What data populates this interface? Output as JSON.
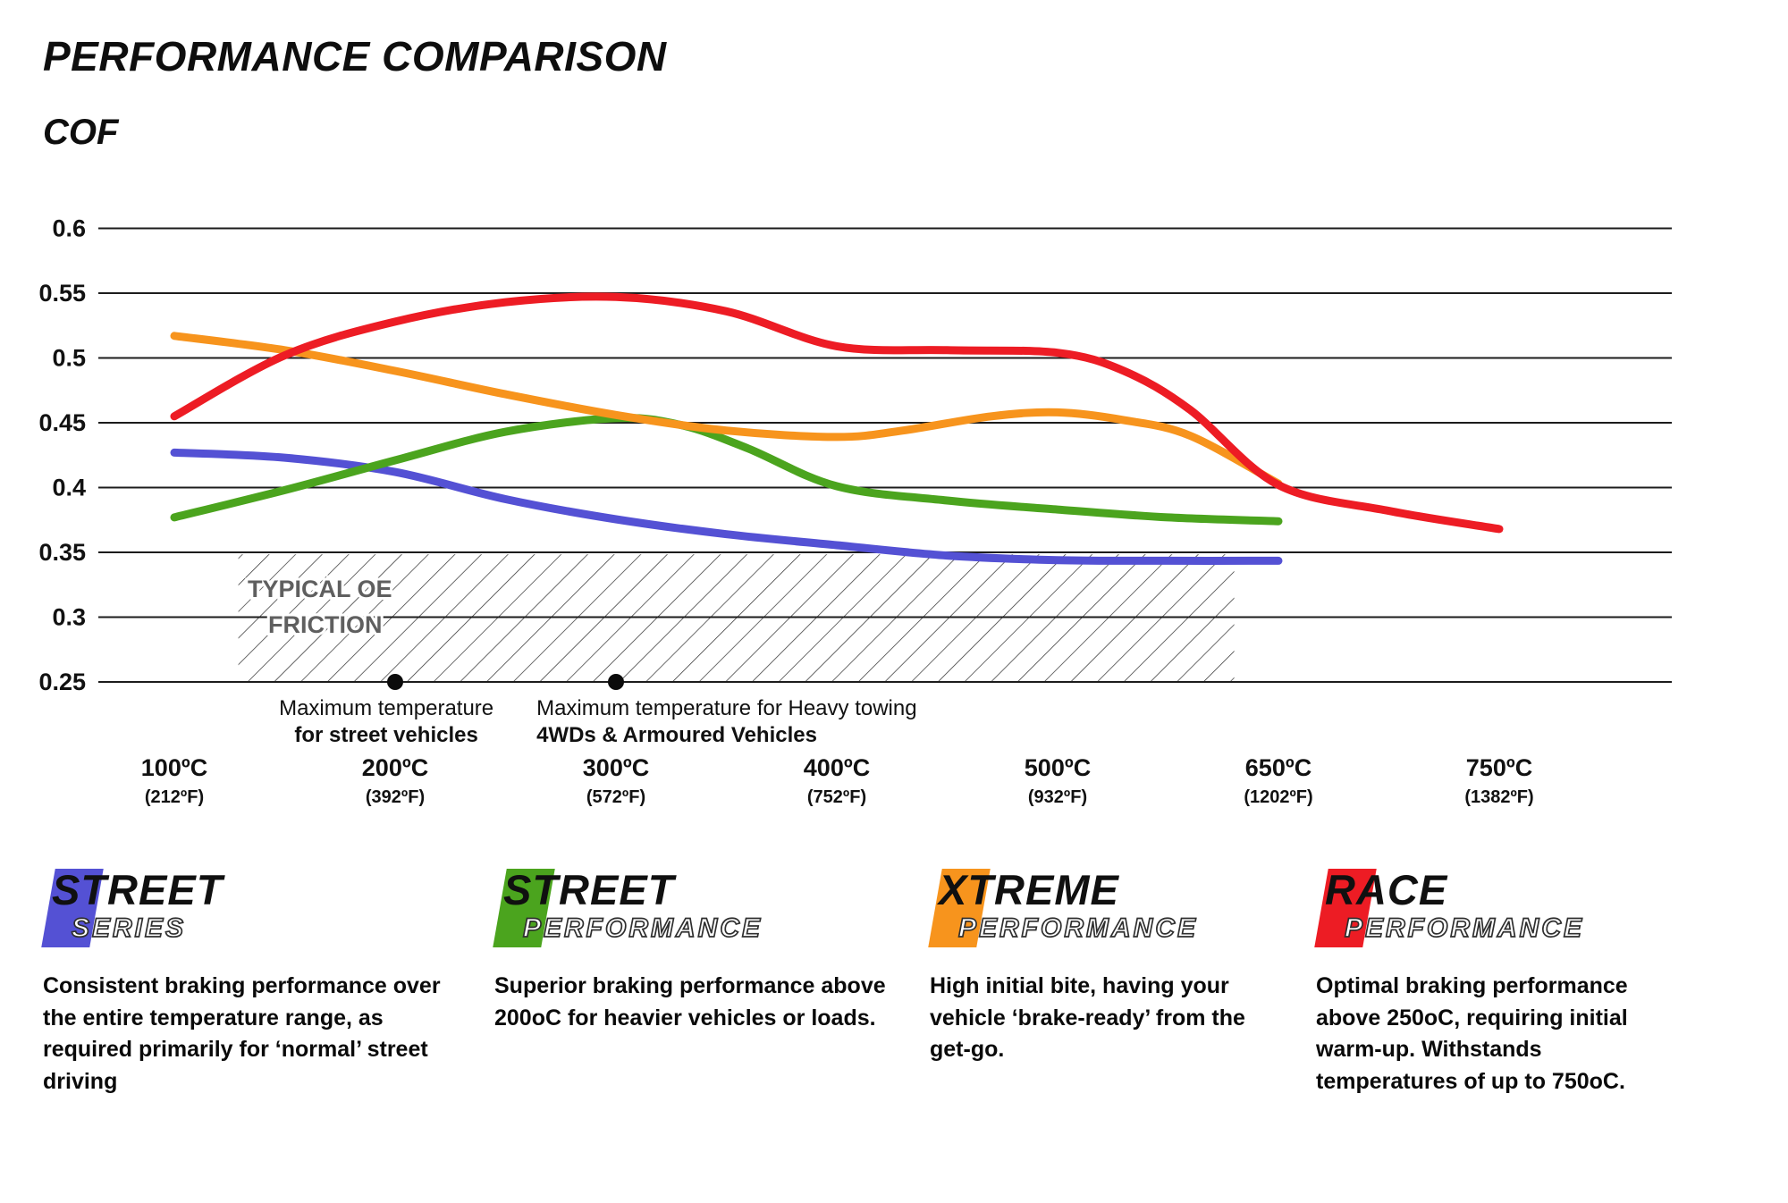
{
  "title": "PERFORMANCE COMPARISON",
  "y_axis_title": "COF",
  "chart_data": {
    "type": "line",
    "title": "PERFORMANCE COMPARISON",
    "ylabel": "COF",
    "x_unit_note": "u = equally-spaced category index into x_categories (0=100ºC, 1=200ºC, 2=300ºC, 3=400ºC, 4=500ºC, 5=650ºC, 6=750ºC); fractional u interpolates between ticks",
    "x_categories": [
      {
        "c": "100ºC",
        "f": "(212ºF)"
      },
      {
        "c": "200ºC",
        "f": "(392ºF)"
      },
      {
        "c": "300ºC",
        "f": "(572ºF)"
      },
      {
        "c": "400ºC",
        "f": "(752ºF)"
      },
      {
        "c": "500ºC",
        "f": "(932ºF)"
      },
      {
        "c": "650ºC",
        "f": "(1202ºF)"
      },
      {
        "c": "750ºC",
        "f": "(1382ºF)"
      }
    ],
    "y_ticks": [
      0.6,
      0.55,
      0.5,
      0.45,
      0.4,
      0.35,
      0.3,
      0.25
    ],
    "ylim": [
      0.25,
      0.6
    ],
    "grid": "horizontal",
    "legend_position": "bottom",
    "series": [
      {
        "name": "Street Series",
        "color": "#5451d4",
        "points": [
          [
            0,
            0.427
          ],
          [
            0.5,
            0.423
          ],
          [
            1,
            0.412
          ],
          [
            1.5,
            0.391
          ],
          [
            2,
            0.3755
          ],
          [
            2.5,
            0.364
          ],
          [
            3,
            0.3555
          ],
          [
            3.5,
            0.3475
          ],
          [
            4,
            0.344
          ],
          [
            4.5,
            0.3435
          ],
          [
            5,
            0.3435
          ]
        ]
      },
      {
        "name": "Street Performance",
        "color": "#4ba41e",
        "points": [
          [
            0,
            0.377
          ],
          [
            0.5,
            0.398
          ],
          [
            1,
            0.421
          ],
          [
            1.5,
            0.443
          ],
          [
            2,
            0.4535
          ],
          [
            2.3,
            0.448
          ],
          [
            2.6,
            0.43
          ],
          [
            3,
            0.401
          ],
          [
            3.5,
            0.39
          ],
          [
            4,
            0.383
          ],
          [
            4.5,
            0.377
          ],
          [
            5,
            0.374
          ]
        ]
      },
      {
        "name": "Xtreme Performance",
        "color": "#f7941d",
        "points": [
          [
            0,
            0.517
          ],
          [
            0.5,
            0.506
          ],
          [
            1,
            0.49
          ],
          [
            1.5,
            0.472
          ],
          [
            2,
            0.456
          ],
          [
            2.5,
            0.444
          ],
          [
            3,
            0.439
          ],
          [
            3.3,
            0.444
          ],
          [
            3.7,
            0.455
          ],
          [
            4,
            0.458
          ],
          [
            4.3,
            0.452
          ],
          [
            4.6,
            0.44
          ],
          [
            5,
            0.403
          ]
        ]
      },
      {
        "name": "Race Performance",
        "color": "#ed1c24",
        "points": [
          [
            0,
            0.455
          ],
          [
            0.5,
            0.502
          ],
          [
            1,
            0.528
          ],
          [
            1.5,
            0.543
          ],
          [
            2,
            0.547
          ],
          [
            2.5,
            0.536
          ],
          [
            3,
            0.509
          ],
          [
            3.5,
            0.506
          ],
          [
            4,
            0.504
          ],
          [
            4.3,
            0.49
          ],
          [
            4.6,
            0.46
          ],
          [
            5,
            0.402
          ],
          [
            5.5,
            0.382
          ],
          [
            6,
            0.368
          ]
        ]
      }
    ],
    "oe_band": {
      "label_line1": "TYPICAL OE",
      "label_line2": "FRICTION",
      "v_top": 0.3485,
      "v_bottom": 0.25,
      "u_from": 0.29,
      "u_to": 4.8
    },
    "annotations": [
      {
        "dot_u": 1,
        "text_x_u": 0.96,
        "anchor": "middle",
        "line1": "Maximum temperature",
        "line2": "for street vehicles"
      },
      {
        "dot_u": 2,
        "text_x_u": 1.64,
        "anchor": "start",
        "line1": "Maximum temperature for Heavy towing",
        "line2": "4WDs & Armoured Vehicles"
      }
    ]
  },
  "legend": [
    {
      "line1": "STREET",
      "line2": "SERIES",
      "color": "#5451d4",
      "description": "Consistent braking performance over the entire temperature range, as required primarily for ‘normal’ street driving"
    },
    {
      "line1": "STREET",
      "line2": "PERFORMANCE",
      "color": "#4ba41e",
      "description": "Superior braking performance above 200oC for heavier vehicles or loads."
    },
    {
      "line1": "XTREME",
      "line2": "PERFORMANCE",
      "color": "#f7941d",
      "description": "High initial bite, having your vehicle ‘brake-ready’ from the get-go."
    },
    {
      "line1": "RACE",
      "line2": "PERFORMANCE",
      "color": "#ed1c24",
      "description": "Optimal braking performance above 250oC, requiring initial warm-up. Withstands temperatures of up to 750oC."
    }
  ]
}
